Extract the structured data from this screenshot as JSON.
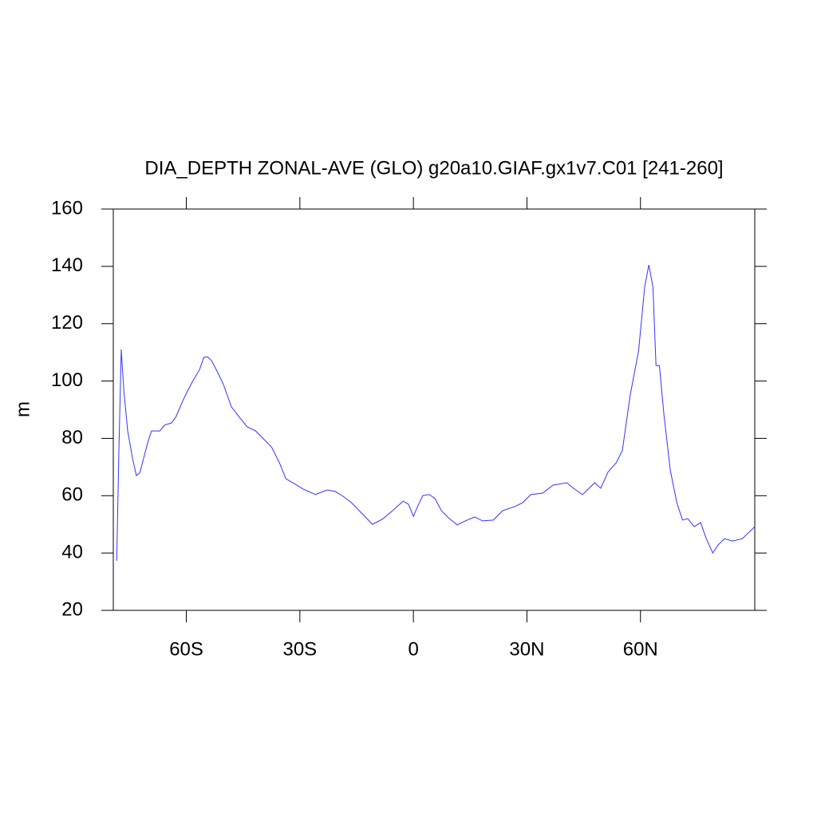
{
  "chart_data": {
    "type": "line",
    "title": "DIA_DEPTH ZONAL-AVE (GLO) g20a10.GIAF.gx1v7.C01 [241-260]",
    "y_label": "m",
    "x": [
      -78.4,
      -77.8,
      -77.2,
      -76.5,
      -75.5,
      -74.2,
      -73.2,
      -72.3,
      -71.3,
      -70.2,
      -69.2,
      -67,
      -65.8,
      -63.9,
      -62.8,
      -60.7,
      -58.6,
      -56.5,
      -55.4,
      -54.4,
      -53.3,
      -51.9,
      -50.2,
      -48.1,
      -46,
      -43.9,
      -41.7,
      -39.6,
      -37.5,
      -35.4,
      -33.7,
      -31.2,
      -29.1,
      -25.9,
      -22.8,
      -20.7,
      -18.6,
      -16.4,
      -13.3,
      -10.8,
      -8,
      -5.5,
      -2.7,
      -1.3,
      0,
      1.1,
      2.5,
      4.2,
      5.7,
      7.4,
      9.5,
      11.6,
      13.7,
      16.2,
      18.3,
      21.1,
      23.6,
      26.8,
      28.9,
      31,
      34.2,
      36.9,
      40.5,
      42.6,
      44.7,
      47.9,
      49.5,
      51.4,
      53.6,
      55.2,
      57.3,
      59.5,
      61.1,
      62.2,
      63.3,
      64.1,
      65,
      66.2,
      67.9,
      69.6,
      71.1,
      72.5,
      74.2,
      75.9,
      77.4,
      79.1,
      80.5,
      82.2,
      84.3,
      86.9,
      90.2
    ],
    "series": [
      {
        "color": "#3333ff",
        "values": [
          37.3,
          77,
          111,
          96.5,
          82.6,
          72.9,
          67,
          68,
          73,
          78.5,
          82.6,
          82.6,
          84.6,
          85.4,
          87.4,
          93.8,
          99.3,
          104,
          108.2,
          108.5,
          107,
          103.5,
          98.8,
          91,
          87.4,
          84,
          82.6,
          79.8,
          77,
          71.5,
          65.9,
          64,
          62.3,
          60.4,
          62,
          61.5,
          59.8,
          57.6,
          53.4,
          50,
          52,
          54.8,
          58.1,
          57,
          52.8,
          56.2,
          60.1,
          60.4,
          59,
          54.8,
          52,
          49.8,
          51.2,
          52.6,
          51.2,
          51.5,
          54.8,
          56.2,
          57.6,
          60.4,
          60.9,
          63.7,
          64.5,
          62.3,
          60.4,
          64.5,
          62.6,
          68.2,
          71.5,
          75.7,
          95.2,
          110.5,
          132.7,
          140.5,
          132.7,
          105.4,
          105.4,
          88.2,
          68.7,
          57.6,
          51.5,
          52,
          49.2,
          50.6,
          45,
          40,
          42.8,
          45,
          44.2,
          45,
          49.2
        ]
      }
    ],
    "xlim": [
      -79.3,
      90.2
    ],
    "xticks": [
      {
        "value": -60,
        "label": "60S"
      },
      {
        "value": -30,
        "label": "30S"
      },
      0,
      {
        "value": 30,
        "label": "30N"
      },
      {
        "value": 60,
        "label": "60N"
      }
    ],
    "ylim": [
      20,
      160
    ],
    "yticks": [
      20,
      40,
      60,
      80,
      100,
      120,
      140,
      160
    ]
  }
}
